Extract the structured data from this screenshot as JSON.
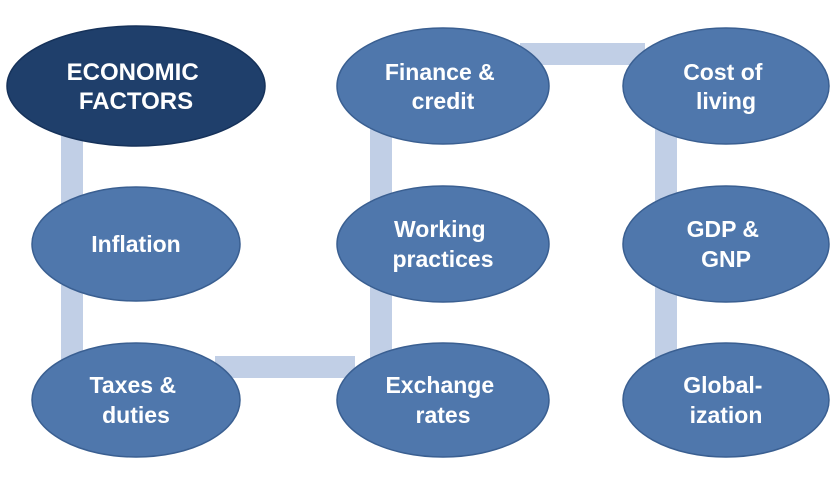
{
  "colors": {
    "background": "#ffffff",
    "connector": "#c1cfe6",
    "node_fill": "#4f77ac",
    "node_stroke": "#3a5f91",
    "title_fill": "#1f3f6b",
    "title_stroke": "#16325a",
    "text": "#ffffff"
  },
  "nodes": {
    "economic_factors": [
      "ECONOMIC",
      "FACTORS"
    ],
    "inflation": [
      "Inflation"
    ],
    "taxes_duties": [
      "Taxes &",
      "duties"
    ],
    "finance_credit": [
      "Finance &",
      "credit"
    ],
    "working_practices": [
      "Working",
      "practices"
    ],
    "exchange_rates": [
      "Exchange",
      "rates"
    ],
    "cost_of_living": [
      "Cost of",
      "living"
    ],
    "gdp_gnp": [
      "GDP &",
      "GNP"
    ],
    "globalization": [
      "Global-",
      "ization"
    ]
  }
}
